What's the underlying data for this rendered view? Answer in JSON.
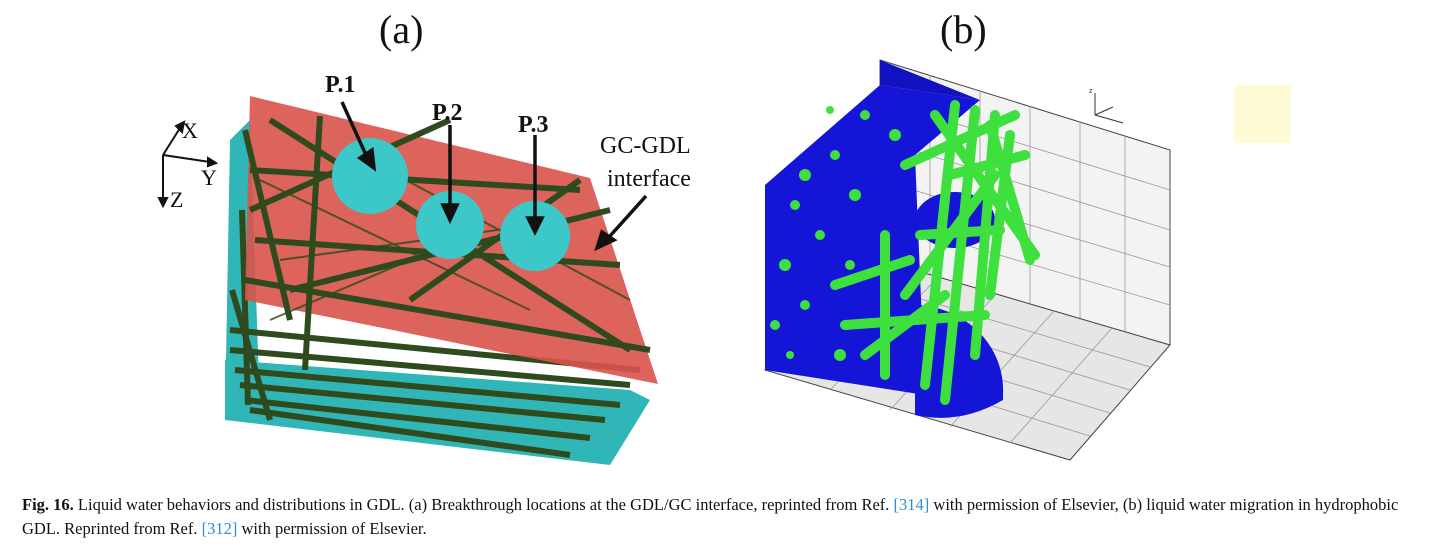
{
  "panels": {
    "a_label": "(a)",
    "b_label": "(b)"
  },
  "figure_a": {
    "pins": [
      "P.1",
      "P.2",
      "P.3"
    ],
    "axes": {
      "x": "X",
      "y": "Y",
      "z": "Z"
    },
    "interface_label_line1": "GC-GDL",
    "interface_label_line2": "interface"
  },
  "colors": {
    "interface_plane": "#d9534a",
    "fibers_dark": "#2f4a1c",
    "droplet": "#3cc8c8",
    "gdl_cyan": "#30b6b6",
    "water_blue": "#1515d8",
    "fibers_green": "#3ee03e",
    "swatch": "#fffbd6",
    "reference_link": "#2b8fd6"
  },
  "caption": {
    "fig_number": "Fig. 16.",
    "text_1": " Liquid water behaviors and distributions in GDL. (a) Breakthrough locations at the GDL/GC interface, reprinted from Ref. ",
    "ref_1": "[314]",
    "text_2": " with permission of Elsevier, (b) liquid water migration in hydrophobic GDL. Reprinted from Ref. ",
    "ref_2": "[312]",
    "text_3": " with permission of Elsevier."
  }
}
